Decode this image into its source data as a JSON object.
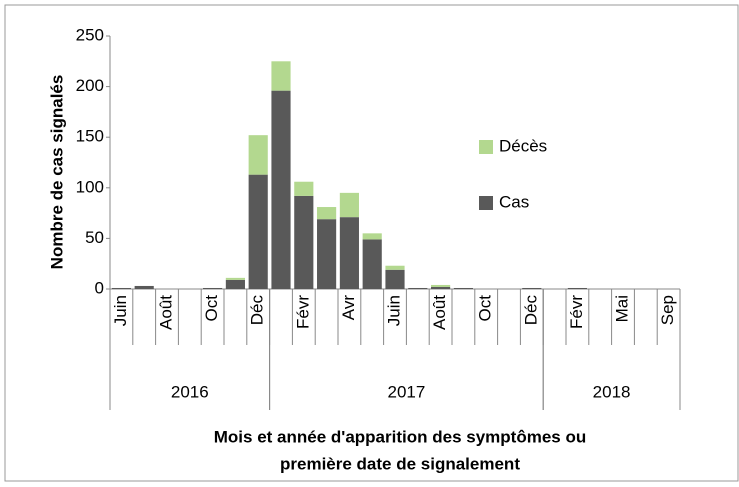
{
  "chart_data": {
    "type": "stacked_bar",
    "y_label": "Nombre de cas signalés",
    "x_label": [
      "Mois et année d'apparition des symptômes ou",
      "première date de signalement"
    ],
    "categories": [
      "Juin",
      null,
      "Août",
      null,
      "Oct",
      null,
      "Déc",
      null,
      "Févr",
      null,
      "Avr",
      null,
      "Juin",
      null,
      "Août",
      null,
      "Oct",
      null,
      "Déc",
      null,
      "Févr",
      null,
      "Mai",
      null,
      "Sep"
    ],
    "years": [
      {
        "label": "2016",
        "count": 7
      },
      {
        "label": "2017",
        "count": 12
      },
      {
        "label": "2018",
        "count": 6
      }
    ],
    "series": [
      {
        "name": "Cas",
        "color": "#595959",
        "values": [
          1,
          3,
          0,
          0,
          1,
          9,
          113,
          196,
          92,
          69,
          71,
          49,
          19,
          1,
          2,
          1,
          0,
          0,
          1,
          0,
          1,
          0,
          0,
          0,
          0
        ]
      },
      {
        "name": "Décès",
        "color": "#b3d88f",
        "values": [
          0,
          0,
          0,
          0,
          0,
          2,
          39,
          29,
          14,
          12,
          24,
          6,
          4,
          0,
          2,
          0,
          0,
          0,
          0,
          0,
          0,
          0,
          0,
          0,
          0
        ]
      }
    ],
    "ylim": [
      0,
      250
    ],
    "yticks": [
      0,
      50,
      100,
      150,
      200,
      250
    ],
    "grid": false
  }
}
